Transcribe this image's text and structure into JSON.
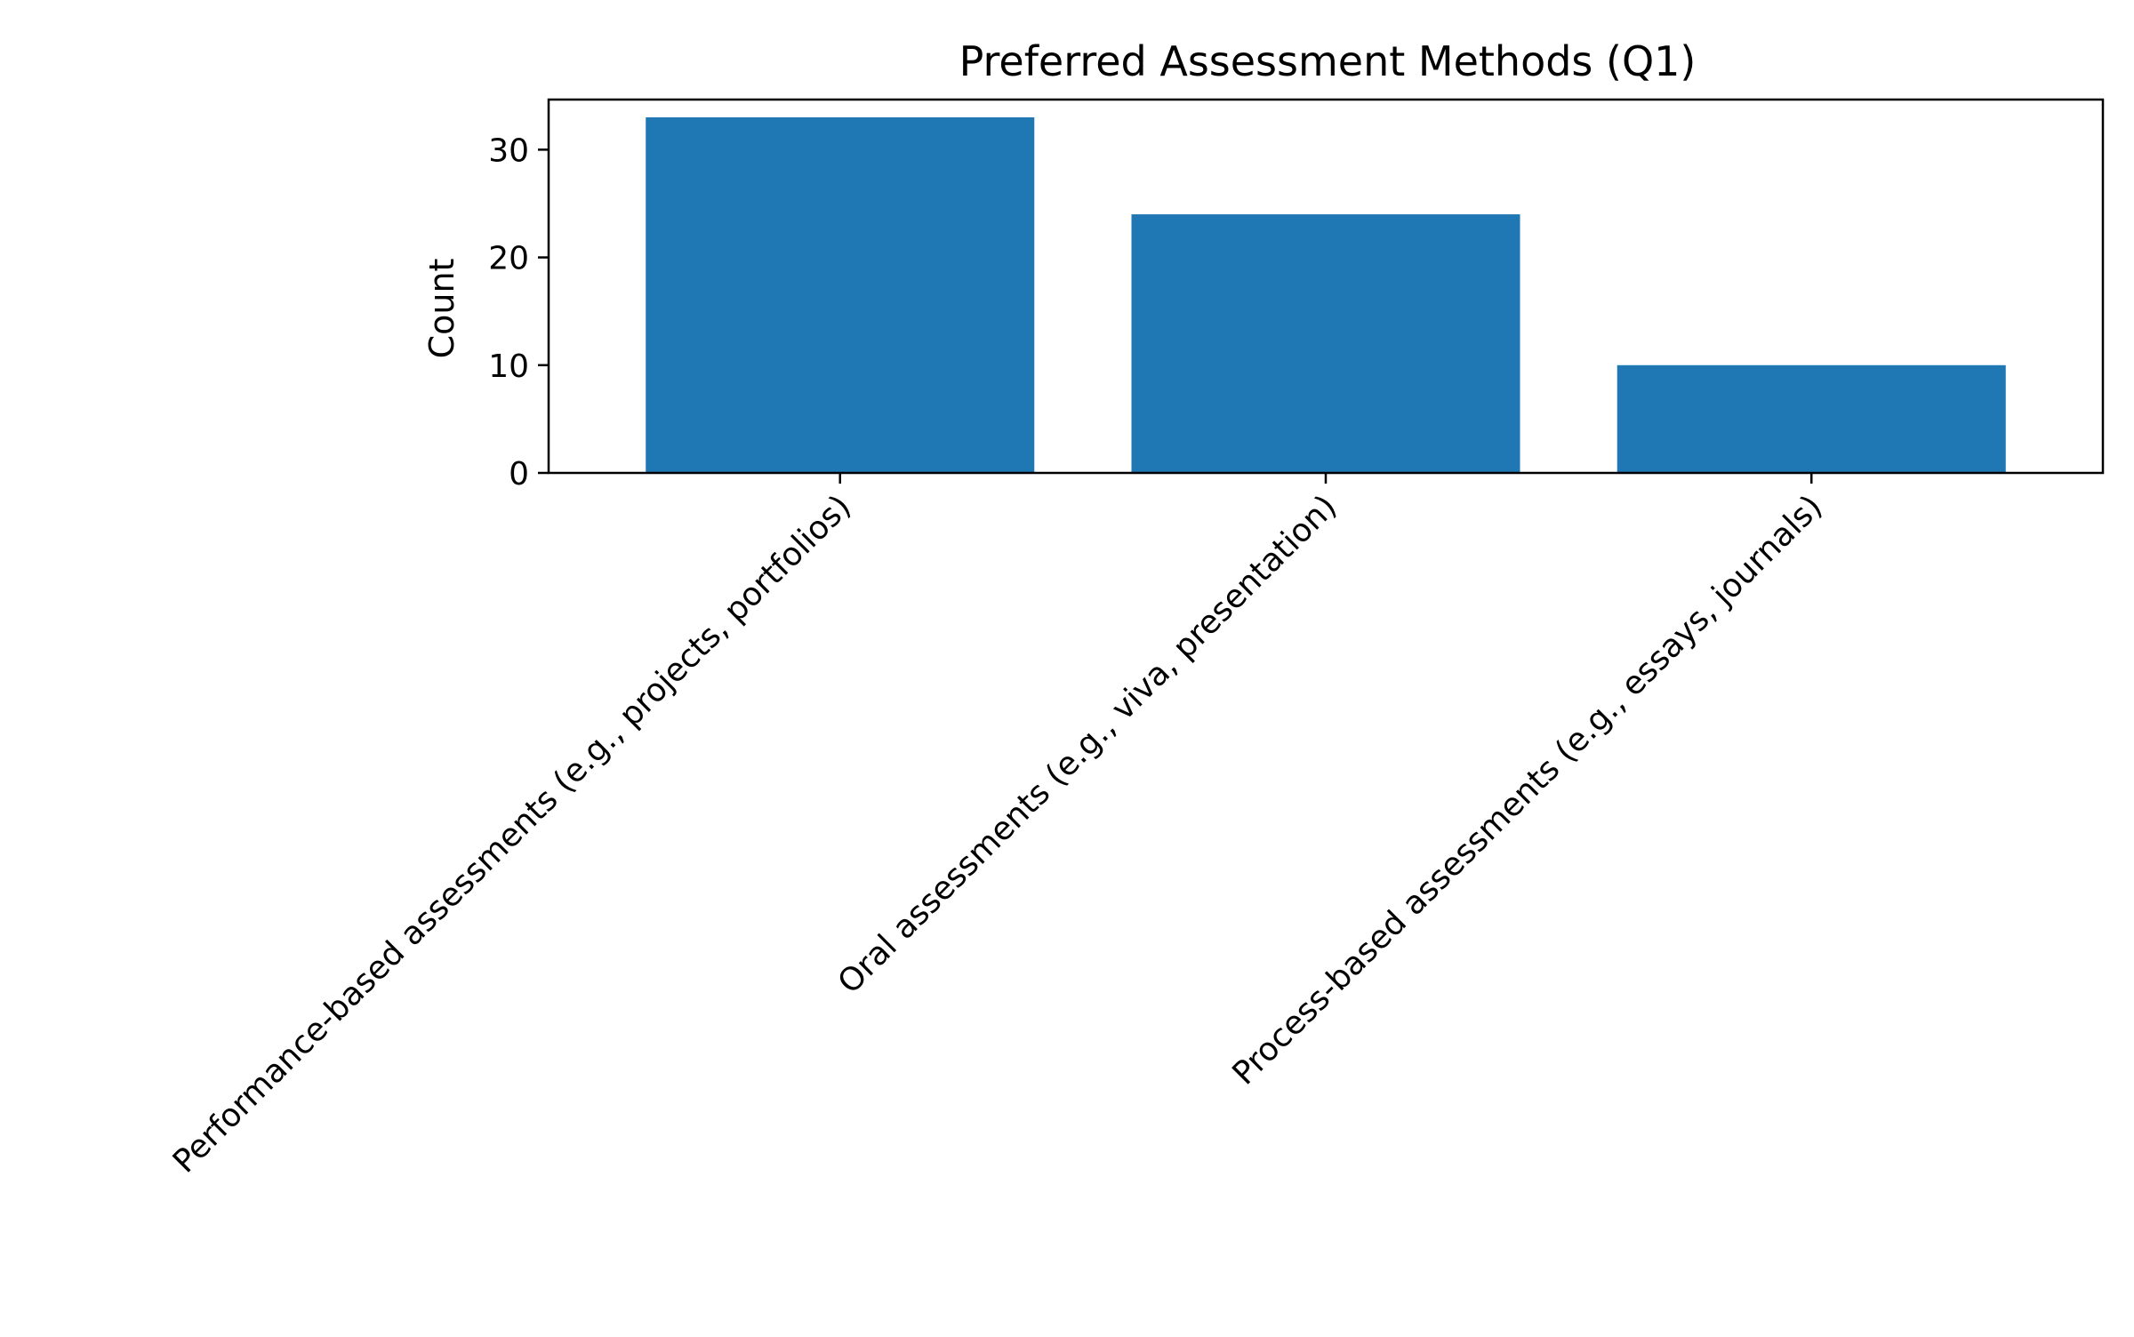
{
  "chart_data": {
    "type": "bar",
    "title": "Preferred Assessment Methods (Q1)",
    "xlabel": "",
    "ylabel": "Count",
    "categories": [
      "Performance-based assessments (e.g., projects, portfolios)",
      "Oral assessments (e.g., viva, presentation)",
      "Process-based assessments (e.g., essays, journals)"
    ],
    "values": [
      33,
      24,
      10
    ],
    "ylim": [
      0,
      34.65
    ],
    "yticks": [
      0,
      10,
      20,
      30
    ],
    "grid": false,
    "legend": "none",
    "bar_color": "#1f77b4"
  }
}
